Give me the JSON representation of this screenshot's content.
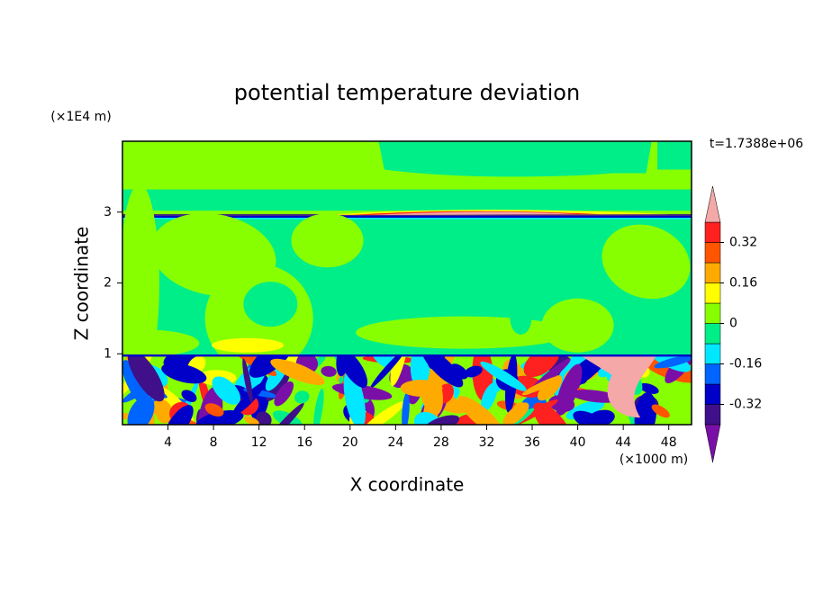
{
  "chart_data": {
    "type": "contour",
    "title": "potential temperature deviation",
    "xlabel": "X coordinate",
    "ylabel": "Z coordinate",
    "xunit": "(×1000 m)",
    "yunit": "(×1E4 m)",
    "annotation": "t=1.7388e+06",
    "xlim": [
      0,
      50
    ],
    "xticks": [
      4,
      8,
      12,
      16,
      20,
      24,
      28,
      32,
      36,
      40,
      44,
      48
    ],
    "ylim": [
      0,
      4
    ],
    "yticks": [
      1,
      2,
      3
    ],
    "colorbar": {
      "levels": [
        -0.4,
        -0.32,
        -0.24,
        -0.16,
        -0.08,
        0,
        0.08,
        0.16,
        0.24,
        0.32,
        0.4
      ],
      "ticks": [
        -0.32,
        -0.16,
        0,
        0.16,
        0.32
      ],
      "colors": [
        "#7a0fa8",
        "#40108a",
        "#0000c8",
        "#0064ff",
        "#00e8ff",
        "#00ee88",
        "#88ff00",
        "#ffff00",
        "#ffaa00",
        "#ff5500",
        "#ff2020",
        "#f4a8a8"
      ]
    }
  }
}
